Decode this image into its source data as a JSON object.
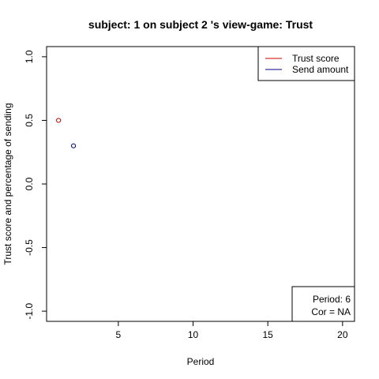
{
  "chart_data": {
    "type": "scatter",
    "title": "subject:  1  on subject  2 's view-game:  Trust",
    "xlabel": "Period",
    "ylabel": "Trust score and percentage of sending",
    "xlim": [
      0.2,
      20.8
    ],
    "ylim": [
      -1.08,
      1.08
    ],
    "x_ticks": [
      5,
      10,
      15,
      20
    ],
    "x_tick_labels": [
      "5",
      "10",
      "15",
      "20"
    ],
    "y_ticks": [
      -1.0,
      -0.5,
      0.0,
      0.5,
      1.0
    ],
    "y_tick_labels": [
      "-1.0",
      "-0.5",
      "0.0",
      "0.5",
      "1.0"
    ],
    "grid": false,
    "legend_position": "top-right",
    "series": [
      {
        "name": "Trust score",
        "color": "#cc0000",
        "x": [
          1
        ],
        "y": [
          0.5
        ]
      },
      {
        "name": "Send amount",
        "color": "#00008b",
        "x": [
          2
        ],
        "y": [
          0.3
        ]
      }
    ],
    "annotation": {
      "position": "bottom-right",
      "lines": [
        "Period:  6",
        "Cor =  NA"
      ]
    }
  }
}
